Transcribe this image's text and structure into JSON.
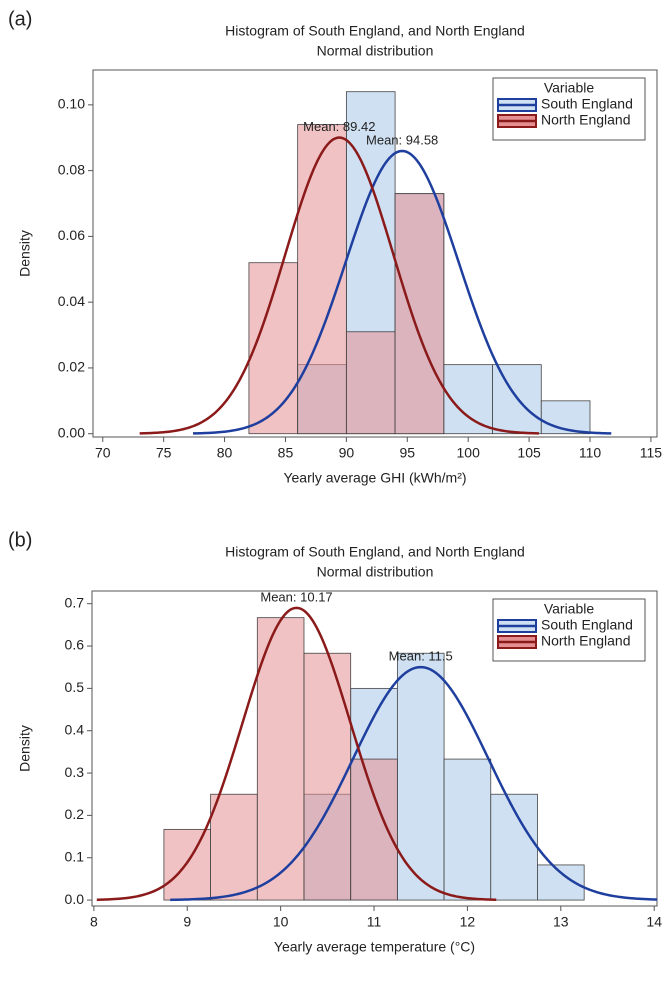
{
  "chart_data": [
    {
      "type": "histogram",
      "panel": "(a)",
      "title": "Histogram of South England, and North England",
      "subtitle": "Normal distribution",
      "x_label": "Yearly average GHI (kWh/m²)",
      "y_label": "Density",
      "legend_title": "Variable",
      "legend": "upper right",
      "xlim": [
        69.2,
        115.5
      ],
      "xticks": [
        70,
        75,
        80,
        85,
        90,
        95,
        100,
        105,
        110,
        115
      ],
      "ylim": [
        -0.001,
        0.1106
      ],
      "yticks": [
        {
          "value": 0,
          "label": "0.00"
        },
        0.02,
        0.04,
        0.06,
        0.08,
        {
          "value": 0.1,
          "label": "0.10"
        }
      ],
      "series": [
        {
          "name": "South England",
          "color": "#1f3f9f",
          "fill": "#cfe0f2",
          "bins": [
            86,
            90,
            94,
            98,
            102,
            106,
            110
          ],
          "values": [
            0.021,
            0.104,
            0.073,
            0.021,
            0.021,
            0.01
          ],
          "mean": 94.58,
          "sd": 4.64,
          "mean_label": "Mean: 94.58"
        },
        {
          "name": "North England",
          "color": "#8b1a1a",
          "fill": "#e58f93",
          "bins": [
            82,
            86,
            90,
            94,
            98
          ],
          "values": [
            0.052,
            0.094,
            0.031,
            0.073
          ],
          "mean": 89.42,
          "sd": 4.43,
          "mean_label": "Mean: 89.42"
        }
      ]
    },
    {
      "type": "histogram",
      "panel": "(b)",
      "title": "Histogram of South England, and North England",
      "subtitle": "Normal distribution",
      "x_label": "Yearly average temperature (°C)",
      "y_label": "Density",
      "legend_title": "Variable",
      "legend": "upper right",
      "xlim": [
        7.98,
        14.03
      ],
      "xticks": [
        8,
        9,
        10,
        11,
        12,
        13,
        14
      ],
      "ylim": [
        -0.014,
        0.73
      ],
      "yticks": [
        {
          "value": 0,
          "label": "0.0"
        },
        0.1,
        0.2,
        0.3,
        0.4,
        0.5,
        0.6,
        0.7
      ],
      "series": [
        {
          "name": "South England",
          "color": "#1f3f9f",
          "fill": "#cfe0f2",
          "bins": [
            10.25,
            10.75,
            11.25,
            11.75,
            12.25,
            12.75,
            13.25
          ],
          "values": [
            0.25,
            0.5,
            0.583,
            0.333,
            0.25,
            0.083
          ],
          "mean": 11.5,
          "sd": 0.725,
          "mean_label": "Mean: 11.5"
        },
        {
          "name": "North England",
          "color": "#8b1a1a",
          "fill": "#e58f93",
          "bins": [
            8.75,
            9.25,
            9.75,
            10.25,
            10.75,
            11.25
          ],
          "values": [
            0.167,
            0.25,
            0.667,
            0.583,
            0.333
          ],
          "mean": 10.17,
          "sd": 0.578,
          "mean_label": "Mean: 10.17"
        }
      ]
    }
  ]
}
